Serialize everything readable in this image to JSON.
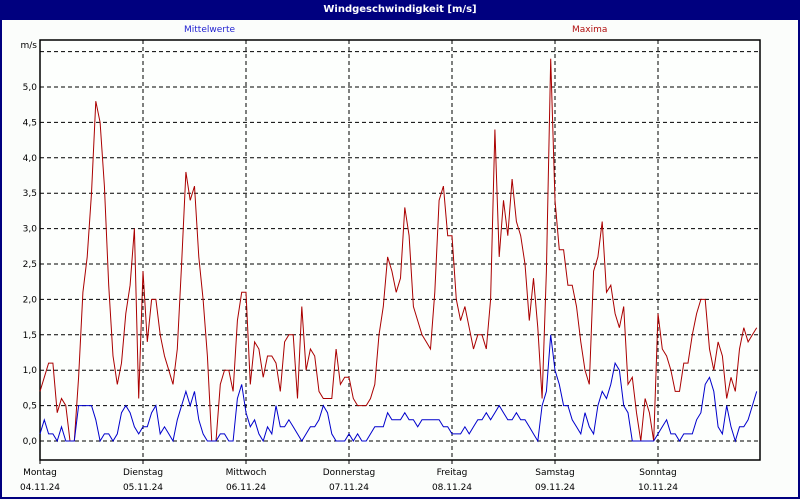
{
  "window": {
    "title": "Windgeschwindigkeit [m/s]"
  },
  "legend": {
    "mean": "Mittelwerte",
    "max": "Maxima"
  },
  "colors": {
    "mean": "#0000cc",
    "max": "#aa0000",
    "frame": "#00007f"
  },
  "chart_data": {
    "type": "line",
    "title": "Windgeschwindigkeit [m/s]",
    "ylabel": "m/s",
    "xlabel": "",
    "ylim": [
      -0.25,
      5.7
    ],
    "yticks": [
      "0,0",
      "0,5",
      "1,0",
      "1,5",
      "2,0",
      "2,5",
      "3,0",
      "3,5",
      "4,0",
      "4,5",
      "5,0"
    ],
    "grid": true,
    "categories": [
      {
        "day": "Montag",
        "date": "04.11.24"
      },
      {
        "day": "Dienstag",
        "date": "05.11.24"
      },
      {
        "day": "Mittwoch",
        "date": "06.11.24"
      },
      {
        "day": "Donnerstag",
        "date": "07.11.24"
      },
      {
        "day": "Freitag",
        "date": "08.11.24"
      },
      {
        "day": "Samstag",
        "date": "09.11.24"
      },
      {
        "day": "Sonntag",
        "date": "10.11.24"
      }
    ],
    "series": [
      {
        "name": "Maxima",
        "color": "#aa0000",
        "values": [
          0.7,
          0.9,
          1.1,
          1.1,
          0.4,
          0.6,
          0.5,
          0.0,
          0.0,
          0.9,
          2.1,
          2.6,
          3.5,
          4.8,
          4.5,
          3.6,
          2.2,
          1.2,
          0.8,
          1.1,
          1.8,
          2.2,
          3.0,
          0.6,
          2.4,
          1.4,
          2.0,
          2.0,
          1.5,
          1.2,
          1.0,
          0.8,
          1.3,
          2.5,
          3.8,
          3.4,
          3.6,
          2.6,
          2.0,
          1.2,
          0.0,
          0.0,
          0.8,
          1.0,
          1.0,
          0.7,
          1.7,
          2.1,
          2.1,
          0.8,
          1.4,
          1.3,
          0.9,
          1.2,
          1.2,
          1.1,
          0.7,
          1.4,
          1.5,
          1.5,
          0.6,
          1.9,
          1.0,
          1.3,
          1.2,
          0.7,
          0.6,
          0.6,
          0.6,
          1.3,
          0.8,
          0.9,
          0.9,
          0.6,
          0.5,
          0.5,
          0.5,
          0.6,
          0.8,
          1.5,
          1.9,
          2.6,
          2.4,
          2.1,
          2.3,
          3.3,
          2.9,
          1.9,
          1.7,
          1.5,
          1.4,
          1.3,
          2.1,
          3.4,
          3.6,
          2.9,
          2.9,
          2.0,
          1.7,
          1.9,
          1.6,
          1.3,
          1.5,
          1.5,
          1.3,
          2.0,
          4.4,
          2.6,
          3.4,
          2.9,
          3.7,
          3.1,
          2.9,
          2.5,
          1.7,
          2.3,
          1.6,
          0.6,
          2.4,
          5.4,
          3.4,
          2.7,
          2.7,
          2.2,
          2.2,
          1.9,
          1.4,
          1.0,
          0.8,
          2.4,
          2.6,
          3.1,
          2.1,
          2.2,
          1.8,
          1.6,
          1.9,
          0.8,
          0.9,
          0.4,
          0.0,
          0.6,
          0.4,
          0.0,
          1.8,
          1.3,
          1.2,
          1.0,
          0.7,
          0.7,
          1.1,
          1.1,
          1.5,
          1.8,
          2.0,
          2.0,
          1.3,
          1.0,
          1.4,
          1.2,
          0.6,
          0.9,
          0.7,
          1.3,
          1.6,
          1.4,
          1.5,
          1.6
        ]
      },
      {
        "name": "Mittelwerte",
        "color": "#0000cc",
        "values": [
          0.1,
          0.3,
          0.1,
          0.1,
          0.0,
          0.2,
          0.0,
          0.0,
          0.0,
          0.5,
          0.5,
          0.5,
          0.5,
          0.3,
          0.0,
          0.1,
          0.1,
          0.0,
          0.1,
          0.4,
          0.5,
          0.4,
          0.2,
          0.1,
          0.2,
          0.2,
          0.4,
          0.5,
          0.1,
          0.2,
          0.1,
          0.0,
          0.3,
          0.5,
          0.7,
          0.5,
          0.7,
          0.3,
          0.1,
          0.0,
          0.0,
          0.0,
          0.1,
          0.1,
          0.0,
          0.0,
          0.6,
          0.8,
          0.4,
          0.2,
          0.3,
          0.1,
          0.0,
          0.2,
          0.1,
          0.5,
          0.2,
          0.2,
          0.3,
          0.2,
          0.1,
          0.0,
          0.1,
          0.2,
          0.2,
          0.3,
          0.5,
          0.4,
          0.1,
          0.0,
          0.0,
          0.0,
          0.1,
          0.0,
          0.1,
          0.0,
          0.0,
          0.1,
          0.2,
          0.2,
          0.2,
          0.4,
          0.3,
          0.3,
          0.3,
          0.4,
          0.3,
          0.3,
          0.2,
          0.3,
          0.3,
          0.3,
          0.3,
          0.3,
          0.2,
          0.2,
          0.1,
          0.1,
          0.1,
          0.2,
          0.1,
          0.2,
          0.3,
          0.3,
          0.4,
          0.3,
          0.4,
          0.5,
          0.4,
          0.3,
          0.3,
          0.4,
          0.3,
          0.3,
          0.2,
          0.1,
          0.0,
          0.5,
          0.7,
          1.5,
          1.0,
          0.8,
          0.5,
          0.5,
          0.3,
          0.2,
          0.1,
          0.4,
          0.2,
          0.1,
          0.5,
          0.7,
          0.6,
          0.8,
          1.1,
          1.0,
          0.5,
          0.4,
          0.0,
          0.0,
          0.0,
          0.0,
          0.0,
          0.0,
          0.1,
          0.2,
          0.3,
          0.1,
          0.1,
          0.0,
          0.1,
          0.1,
          0.1,
          0.3,
          0.4,
          0.8,
          0.9,
          0.7,
          0.2,
          0.1,
          0.5,
          0.2,
          0.0,
          0.2,
          0.2,
          0.3,
          0.5,
          0.7
        ]
      }
    ]
  }
}
